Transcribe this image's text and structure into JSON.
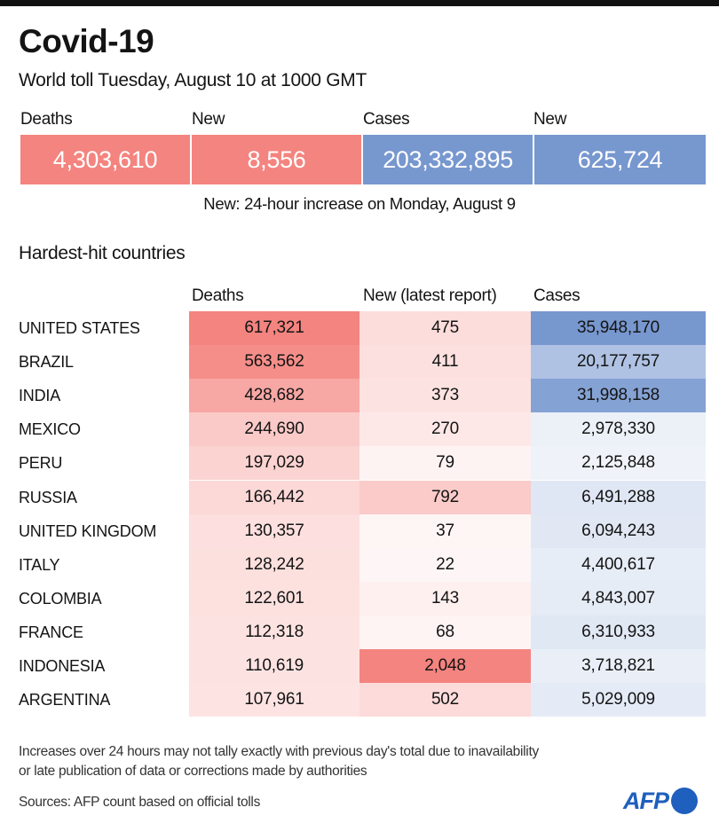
{
  "header": {
    "title": "Covid-19",
    "subtitle": "World toll Tuesday, August 10 at 1000 GMT"
  },
  "summary": {
    "items": [
      {
        "label": "Deaths",
        "value": "4,303,610",
        "color": "#f4847f"
      },
      {
        "label": "New",
        "value": "8,556",
        "color": "#f4847f"
      },
      {
        "label": "Cases",
        "value": "203,332,895",
        "color": "#7797cf"
      },
      {
        "label": "New",
        "value": "625,724",
        "color": "#7797cf"
      }
    ],
    "note": "New: 24-hour increase on Monday, August 9"
  },
  "colors": {
    "deaths_max": "#f4847f",
    "cases_max": "#7797cf",
    "low": "#ffffff"
  },
  "chart_data": {
    "type": "table",
    "title": "Hardest-hit countries",
    "columns": [
      "Deaths",
      "New (latest report)",
      "Cases"
    ],
    "rows": [
      {
        "country": "UNITED STATES",
        "deaths": "617,321",
        "new": "475",
        "cases": "35,948,170"
      },
      {
        "country": "BRAZIL",
        "deaths": "563,562",
        "new": "411",
        "cases": "20,177,757"
      },
      {
        "country": "INDIA",
        "deaths": "428,682",
        "new": "373",
        "cases": "31,998,158"
      },
      {
        "country": "MEXICO",
        "deaths": "244,690",
        "new": "270",
        "cases": "2,978,330"
      },
      {
        "country": "PERU",
        "deaths": "197,029",
        "new": "79",
        "cases": "2,125,848"
      },
      {
        "country": "RUSSIA",
        "deaths": "166,442",
        "new": "792",
        "cases": "6,491,288"
      },
      {
        "country": "UNITED KINGDOM",
        "deaths": "130,357",
        "new": "37",
        "cases": "6,094,243"
      },
      {
        "country": "ITALY",
        "deaths": "128,242",
        "new": "22",
        "cases": "4,400,617"
      },
      {
        "country": "COLOMBIA",
        "deaths": "122,601",
        "new": "143",
        "cases": "4,843,007"
      },
      {
        "country": "FRANCE",
        "deaths": "112,318",
        "new": "68",
        "cases": "6,310,933"
      },
      {
        "country": "INDONESIA",
        "deaths": "110,619",
        "new": "2,048",
        "cases": "3,718,821"
      },
      {
        "country": "ARGENTINA",
        "deaths": "107,961",
        "new": "502",
        "cases": "5,029,009"
      }
    ]
  },
  "footer": {
    "disclaimer_line1": "Increases over 24 hours may not tally exactly with previous day's total due to inavailability",
    "disclaimer_line2": "or late publication of data or corrections made by authorities",
    "sources": "Sources: AFP count based on official tolls",
    "logo_text": "AFP"
  }
}
